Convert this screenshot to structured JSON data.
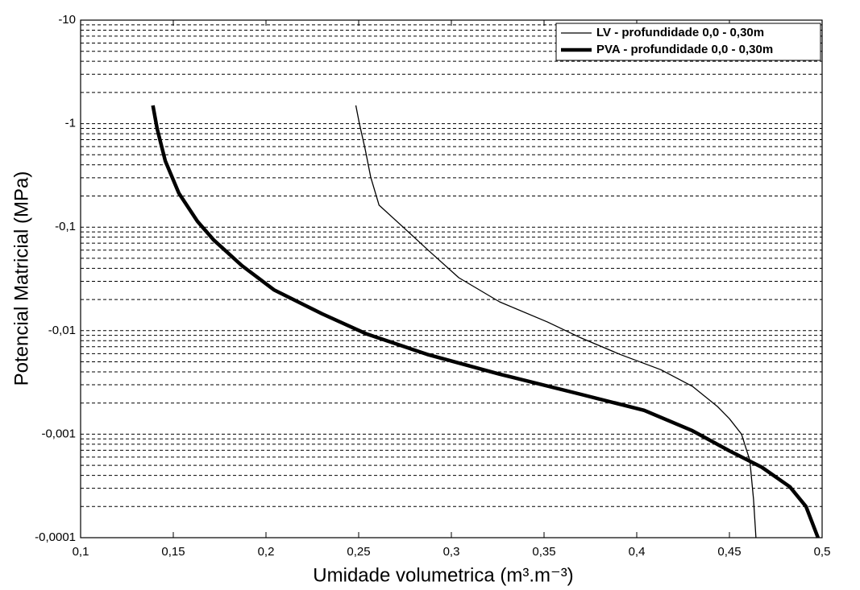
{
  "chart_data": {
    "type": "line",
    "xlabel": "Umidade volumetrica (m³.m⁻³)",
    "ylabel": "Potencial Matricial (MPa)",
    "xlim": [
      0.1,
      0.5
    ],
    "xticks": [
      {
        "value": 0.1,
        "label": "0,1"
      },
      {
        "value": 0.15,
        "label": "0,15"
      },
      {
        "value": 0.2,
        "label": "0,2"
      },
      {
        "value": 0.25,
        "label": "0,25"
      },
      {
        "value": 0.3,
        "label": "0,3"
      },
      {
        "value": 0.35,
        "label": "0,35"
      },
      {
        "value": 0.4,
        "label": "0,4"
      },
      {
        "value": 0.45,
        "label": "0,45"
      },
      {
        "value": 0.5,
        "label": "0,5"
      }
    ],
    "ylim": [
      -0.0001,
      -10
    ],
    "ylog": true,
    "yticks": [
      {
        "value": -0.0001,
        "label": "-0,0001"
      },
      {
        "value": -0.001,
        "label": "-0,001"
      },
      {
        "value": -0.01,
        "label": "-0,01"
      },
      {
        "value": -0.1,
        "label": "-0,1"
      },
      -1,
      -10
    ],
    "grid": true,
    "minor_grid": true,
    "legend": "upper right",
    "series": [
      {
        "name": "LV - profundidade 0,0 - 0,30m",
        "color": "#000000",
        "line_width": 1.3,
        "x": [
          0.2485,
          0.2504,
          0.2535,
          0.2565,
          0.261,
          0.274,
          0.287,
          0.304,
          0.326,
          0.352,
          0.37,
          0.391,
          0.413,
          0.43,
          0.4435,
          0.45,
          0.4565,
          0.461,
          0.463,
          0.4643
        ],
        "y": [
          -1.5,
          -1,
          -0.57,
          -0.305,
          -0.163,
          -0.1,
          -0.061,
          -0.0325,
          -0.019,
          -0.0121,
          -0.0085,
          -0.0059,
          -0.0042,
          -0.0029,
          -0.00185,
          -0.00141,
          -0.001,
          -0.00056,
          -0.000235,
          -0.0001
        ]
      },
      {
        "name": "PVA - profundidade 0,0 - 0,30m",
        "color": "#000000",
        "line_width": 4.5,
        "x": [
          0.139,
          0.1413,
          0.1457,
          0.153,
          0.163,
          0.1717,
          0.187,
          0.2043,
          0.2304,
          0.2543,
          0.287,
          0.326,
          0.37,
          0.404,
          0.43,
          0.45,
          0.4674,
          0.4826,
          0.4913,
          0.4978
        ],
        "y": [
          -1.5,
          -0.89,
          -0.436,
          -0.213,
          -0.114,
          -0.0755,
          -0.0425,
          -0.0248,
          -0.0145,
          -0.0093,
          -0.0059,
          -0.0038,
          -0.00242,
          -0.0017,
          -0.00108,
          -0.00069,
          -0.00048,
          -0.00031,
          -0.0002,
          -0.0001
        ]
      }
    ]
  }
}
